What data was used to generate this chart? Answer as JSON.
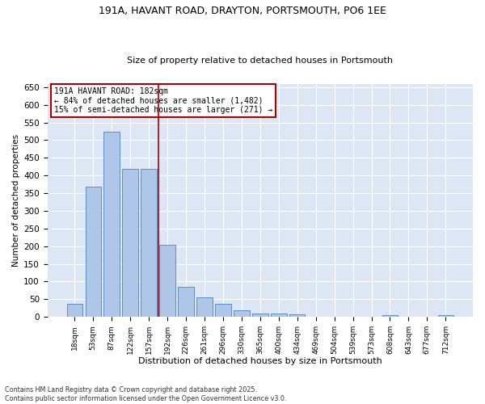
{
  "title_line1": "191A, HAVANT ROAD, DRAYTON, PORTSMOUTH, PO6 1EE",
  "title_line2": "Size of property relative to detached houses in Portsmouth",
  "xlabel": "Distribution of detached houses by size in Portsmouth",
  "ylabel": "Number of detached properties",
  "categories": [
    "18sqm",
    "53sqm",
    "87sqm",
    "122sqm",
    "157sqm",
    "192sqm",
    "226sqm",
    "261sqm",
    "296sqm",
    "330sqm",
    "365sqm",
    "400sqm",
    "434sqm",
    "469sqm",
    "504sqm",
    "539sqm",
    "573sqm",
    "608sqm",
    "643sqm",
    "677sqm",
    "712sqm"
  ],
  "values": [
    36,
    368,
    523,
    418,
    418,
    205,
    85,
    55,
    36,
    18,
    10,
    9,
    7,
    0,
    0,
    0,
    0,
    4,
    0,
    0,
    4
  ],
  "bar_color": "#aec6e8",
  "bar_edge_color": "#5b8dc8",
  "vline_index": 5,
  "vline_color": "#aa0000",
  "annotation_title": "191A HAVANT ROAD: 182sqm",
  "annotation_line2": "← 84% of detached houses are smaller (1,482)",
  "annotation_line3": "15% of semi-detached houses are larger (271) →",
  "annotation_box_edgecolor": "#aa0000",
  "ylim": [
    0,
    660
  ],
  "yticks": [
    0,
    50,
    100,
    150,
    200,
    250,
    300,
    350,
    400,
    450,
    500,
    550,
    600,
    650
  ],
  "fig_bg_color": "#ffffff",
  "ax_bg_color": "#dce6f5",
  "grid_color": "#ffffff",
  "footer_line1": "Contains HM Land Registry data © Crown copyright and database right 2025.",
  "footer_line2": "Contains public sector information licensed under the Open Government Licence v3.0."
}
